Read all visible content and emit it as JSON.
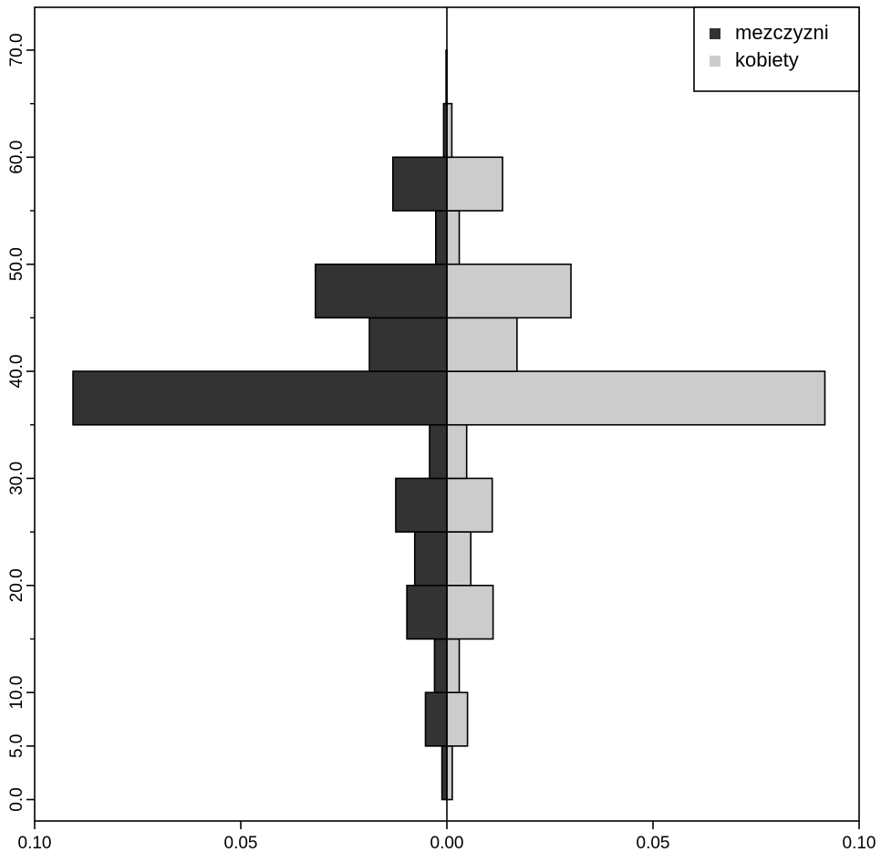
{
  "chart_data": {
    "type": "bar",
    "orientation": "horizontal",
    "layout": "population-pyramid",
    "x_ticks": [
      "0.10",
      "0.05",
      "0.00",
      "0.05",
      "0.10"
    ],
    "xlim": [
      -0.1,
      0.1
    ],
    "y_ticks": [
      "0.0",
      "5.0",
      "10.0",
      "20.0",
      "30.0",
      "40.0",
      "50.0",
      "60.0",
      "70.0"
    ],
    "y_tick_values": [
      0,
      5,
      10,
      20,
      30,
      40,
      50,
      60,
      70
    ],
    "y_minor_ticks": [
      15,
      25,
      35,
      45,
      55,
      65
    ],
    "ylim": [
      -2,
      74
    ],
    "series": [
      {
        "name": "mezczyzni",
        "color": "#333333",
        "side": "left",
        "bins": [
          {
            "y0": 0,
            "y1": 5,
            "value": 0.0012
          },
          {
            "y0": 5,
            "y1": 10,
            "value": 0.0052
          },
          {
            "y0": 10,
            "y1": 15,
            "value": 0.003
          },
          {
            "y0": 15,
            "y1": 20,
            "value": 0.0097
          },
          {
            "y0": 20,
            "y1": 25,
            "value": 0.0078
          },
          {
            "y0": 25,
            "y1": 30,
            "value": 0.0124
          },
          {
            "y0": 30,
            "y1": 35,
            "value": 0.0042
          },
          {
            "y0": 35,
            "y1": 40,
            "value": 0.0907
          },
          {
            "y0": 40,
            "y1": 45,
            "value": 0.0188
          },
          {
            "y0": 45,
            "y1": 50,
            "value": 0.0319
          },
          {
            "y0": 50,
            "y1": 55,
            "value": 0.0027
          },
          {
            "y0": 55,
            "y1": 60,
            "value": 0.0131
          },
          {
            "y0": 60,
            "y1": 65,
            "value": 0.0008
          },
          {
            "y0": 65,
            "y1": 70,
            "value": 0.0002
          }
        ]
      },
      {
        "name": "kobiety",
        "color": "#cccccc",
        "side": "right",
        "bins": [
          {
            "y0": 0,
            "y1": 5,
            "value": 0.0013
          },
          {
            "y0": 5,
            "y1": 10,
            "value": 0.005
          },
          {
            "y0": 10,
            "y1": 15,
            "value": 0.003
          },
          {
            "y0": 15,
            "y1": 20,
            "value": 0.0112
          },
          {
            "y0": 20,
            "y1": 25,
            "value": 0.0058
          },
          {
            "y0": 25,
            "y1": 30,
            "value": 0.011
          },
          {
            "y0": 30,
            "y1": 35,
            "value": 0.0048
          },
          {
            "y0": 35,
            "y1": 40,
            "value": 0.0917
          },
          {
            "y0": 40,
            "y1": 45,
            "value": 0.017
          },
          {
            "y0": 45,
            "y1": 50,
            "value": 0.0301
          },
          {
            "y0": 50,
            "y1": 55,
            "value": 0.003
          },
          {
            "y0": 55,
            "y1": 60,
            "value": 0.0135
          },
          {
            "y0": 60,
            "y1": 65,
            "value": 0.0012
          },
          {
            "y0": 65,
            "y1": 70,
            "value": 0.0
          }
        ]
      }
    ],
    "legend": {
      "position": "top-right",
      "entries": [
        "mezczyzni",
        "kobiety"
      ]
    },
    "grid": false
  }
}
